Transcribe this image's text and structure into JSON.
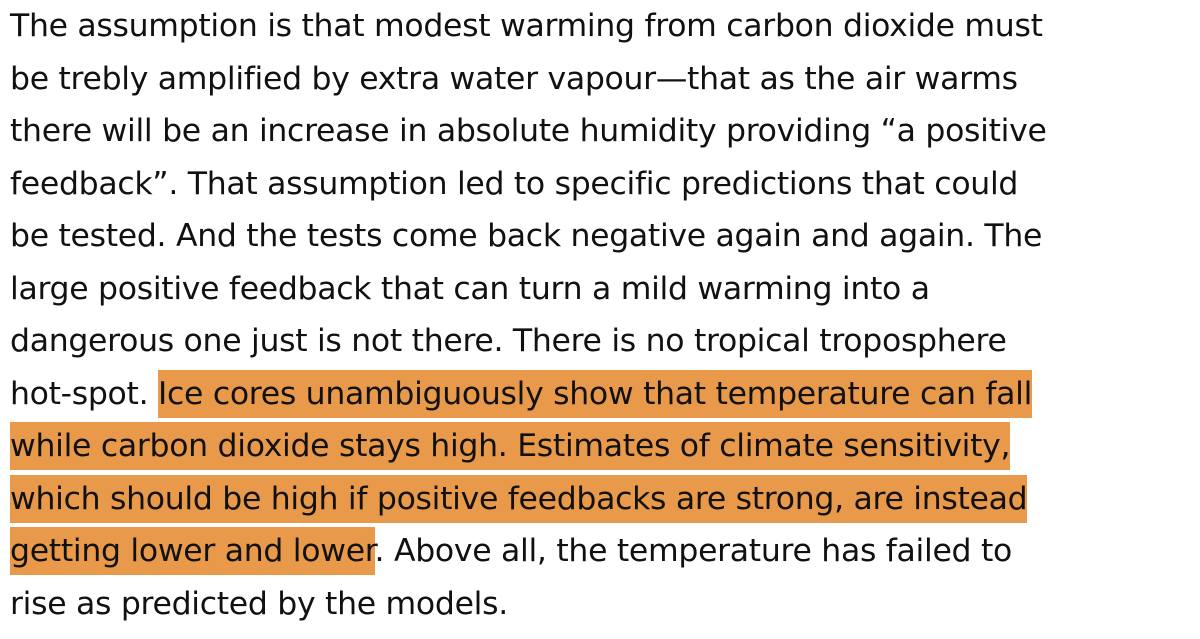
{
  "paragraph": {
    "lines": [
      {
        "text": "The assumption is that modest warming from carbon dioxide must",
        "highlight": ""
      },
      {
        "text": "be trebly amplified by extra water vapour—that as the air warms",
        "highlight": ""
      },
      {
        "text": "there will be an increase in absolute humidity providing “a positive",
        "highlight": ""
      },
      {
        "text": "feedback”. That assumption led to specific predictions that could",
        "highlight": ""
      },
      {
        "text": "be tested. And the tests come back negative again and again. The",
        "highlight": ""
      },
      {
        "text": "large positive feedback that can turn a mild warming into a",
        "highlight": ""
      },
      {
        "text": "dangerous one just is not there. There is no tropical troposphere",
        "highlight": ""
      },
      {
        "text": "hot-spot. ",
        "highlight": "Ice cores unambiguously show that temperature can fall",
        "after": ""
      },
      {
        "text": "",
        "highlight": "while carbon dioxide stays high. Estimates of climate sensitivity,",
        "after": ""
      },
      {
        "text": "",
        "highlight": "which should be high if positive feedbacks are strong, are instead",
        "after": ""
      },
      {
        "text": "",
        "highlight": "getting lower and lower",
        "after": ". Above all, the temperature has failed to"
      },
      {
        "text": "rise as predicted by the models.",
        "highlight": ""
      }
    ],
    "highlight_color": "#e8994a"
  }
}
